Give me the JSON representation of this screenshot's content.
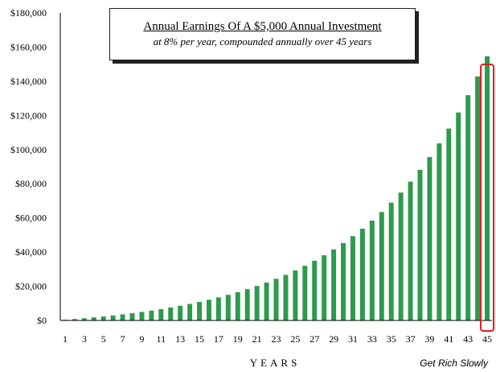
{
  "chart_data": {
    "type": "bar",
    "title": "Annual Earnings Of A $5,000 Annual Investment",
    "subtitle": "at 8% per year, compounded annually over 45 years",
    "xlabel": "YEARS",
    "ylabel": "",
    "ylim": [
      0,
      180000
    ],
    "yticks": [
      0,
      20000,
      40000,
      60000,
      80000,
      100000,
      120000,
      140000,
      160000,
      180000
    ],
    "ytick_labels": [
      "$0",
      "$20,000",
      "$40,000",
      "$60,000",
      "$80,000",
      "$100,000",
      "$120,000",
      "$140,000",
      "$160,000",
      "$180,000"
    ],
    "xtick_labels": [
      "1",
      "3",
      "5",
      "7",
      "9",
      "11",
      "13",
      "15",
      "17",
      "19",
      "21",
      "23",
      "25",
      "27",
      "29",
      "31",
      "33",
      "35",
      "37",
      "39",
      "41",
      "43",
      "45"
    ],
    "categories": [
      1,
      2,
      3,
      4,
      5,
      6,
      7,
      8,
      9,
      10,
      11,
      12,
      13,
      14,
      15,
      16,
      17,
      18,
      19,
      20,
      21,
      22,
      23,
      24,
      25,
      26,
      27,
      28,
      29,
      30,
      31,
      32,
      33,
      34,
      35,
      36,
      37,
      38,
      39,
      40,
      41,
      42,
      43,
      44,
      45
    ],
    "values": [
      400,
      832,
      1299,
      1802,
      2347,
      2934,
      3569,
      4255,
      4995,
      5795,
      6659,
      7592,
      8599,
      9687,
      10862,
      12131,
      13502,
      14982,
      16580,
      18307,
      20171,
      22185,
      24360,
      26709,
      29246,
      31985,
      34944,
      38140,
      41591,
      45318,
      49344,
      53691,
      58387,
      63458,
      68934,
      74849,
      81237,
      88136,
      95587,
      103634,
      112325,
      121711,
      131848,
      142796,
      154620
    ],
    "highlight_category": 45,
    "grid": false,
    "bar_color": "#2e9a4c",
    "highlight_color": "#e01b1b",
    "brand": "Get Rich Slowly"
  }
}
